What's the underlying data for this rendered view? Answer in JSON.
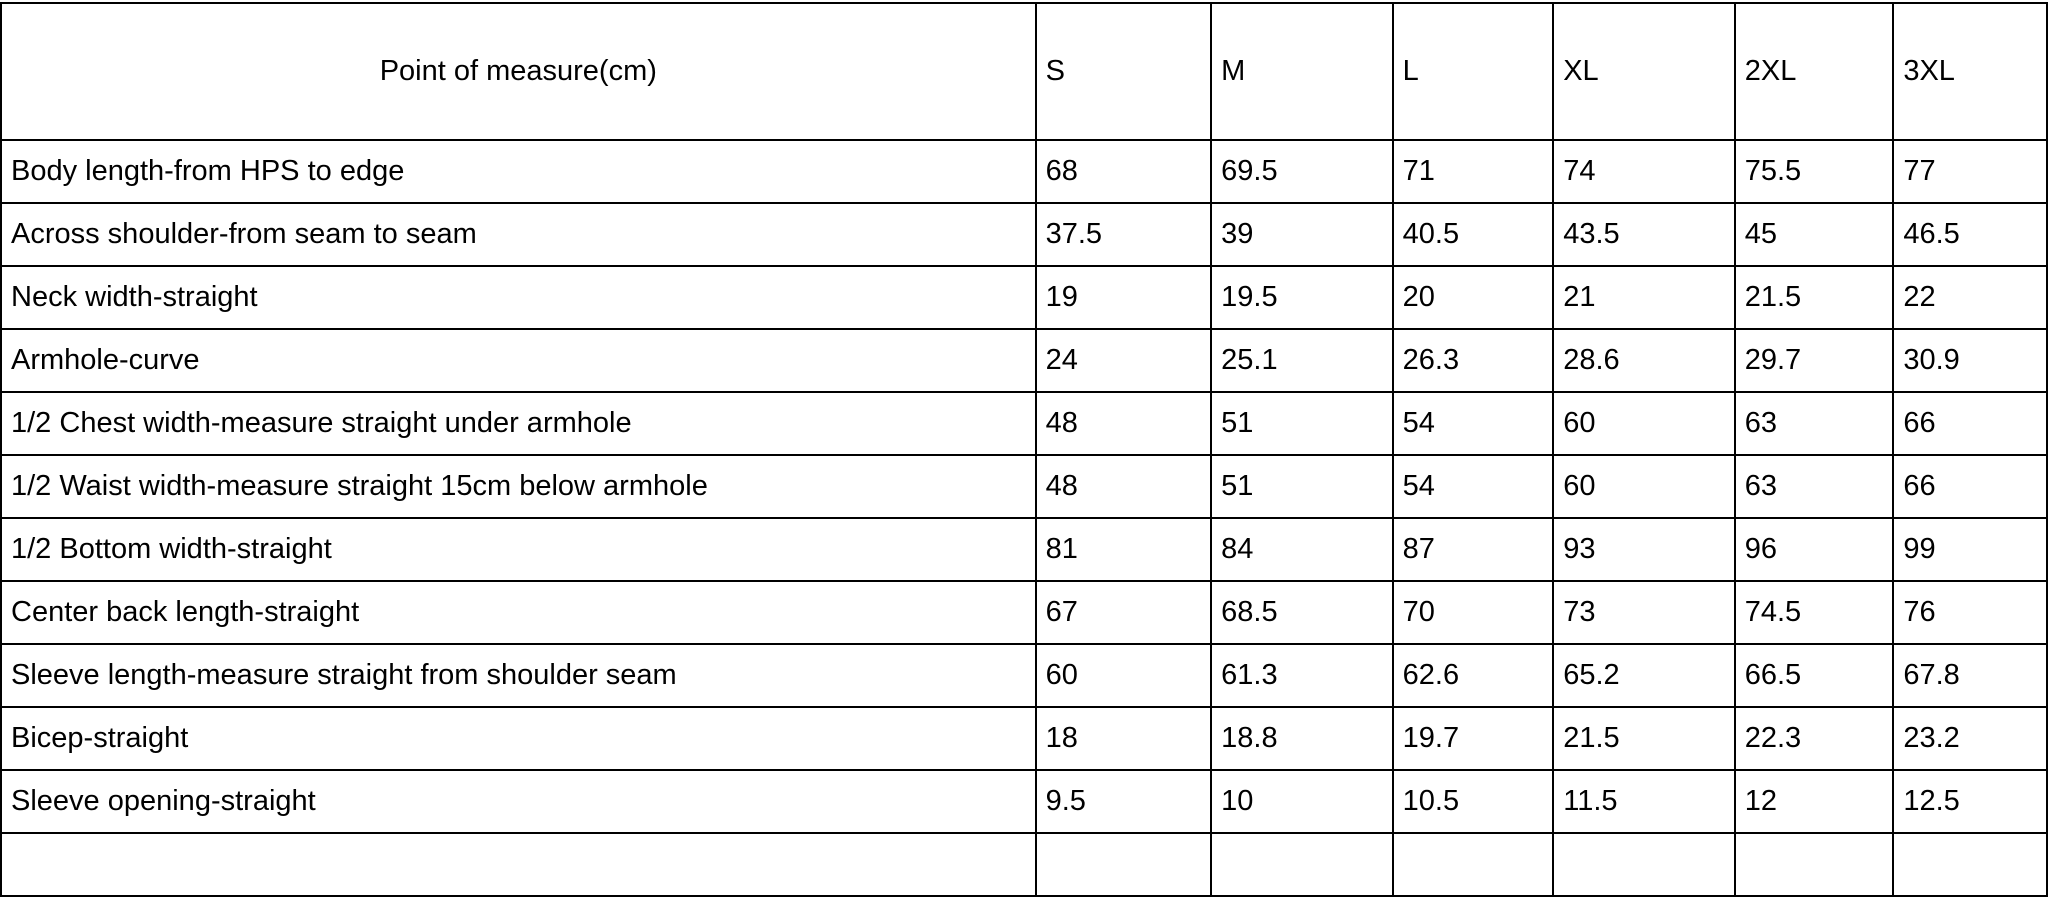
{
  "table": {
    "header": [
      "Point of measure(cm)",
      "S",
      "M",
      "L",
      "XL",
      "2XL",
      "3XL"
    ],
    "rows": [
      [
        "Body  length-from HPS to edge",
        "68",
        "69.5",
        "71",
        "74",
        "75.5",
        "77"
      ],
      [
        "Across shoulder-from seam to seam",
        "37.5",
        "39",
        "40.5",
        "43.5",
        "45",
        "46.5"
      ],
      [
        "Neck width-straight",
        "19",
        "19.5",
        "20",
        "21",
        "21.5",
        "22"
      ],
      [
        "Armhole-curve",
        "24",
        "25.1",
        "26.3",
        "28.6",
        "29.7",
        "30.9"
      ],
      [
        "1/2 Chest width-measure straight under armhole",
        "48",
        "51",
        "54",
        "60",
        "63",
        "66"
      ],
      [
        "1/2 Waist width-measure straight 15cm below armhole",
        "48",
        "51",
        "54",
        "60",
        "63",
        "66"
      ],
      [
        "1/2 Bottom width-straight",
        "81",
        "84",
        "87",
        "93",
        "96",
        "99"
      ],
      [
        "Center back length-straight",
        "67",
        "68.5",
        "70",
        "73",
        "74.5",
        "76"
      ],
      [
        "Sleeve length-measure straight from shoulder seam",
        "60",
        "61.3",
        "62.6",
        "65.2",
        "66.5",
        "67.8"
      ],
      [
        "Bicep-straight",
        "18",
        "18.8",
        "19.7",
        "21.5",
        "22.3",
        "23.2"
      ],
      [
        "Sleeve opening-straight",
        "9.5",
        "10",
        "10.5",
        "11.5",
        "12",
        "12.5"
      ]
    ]
  }
}
